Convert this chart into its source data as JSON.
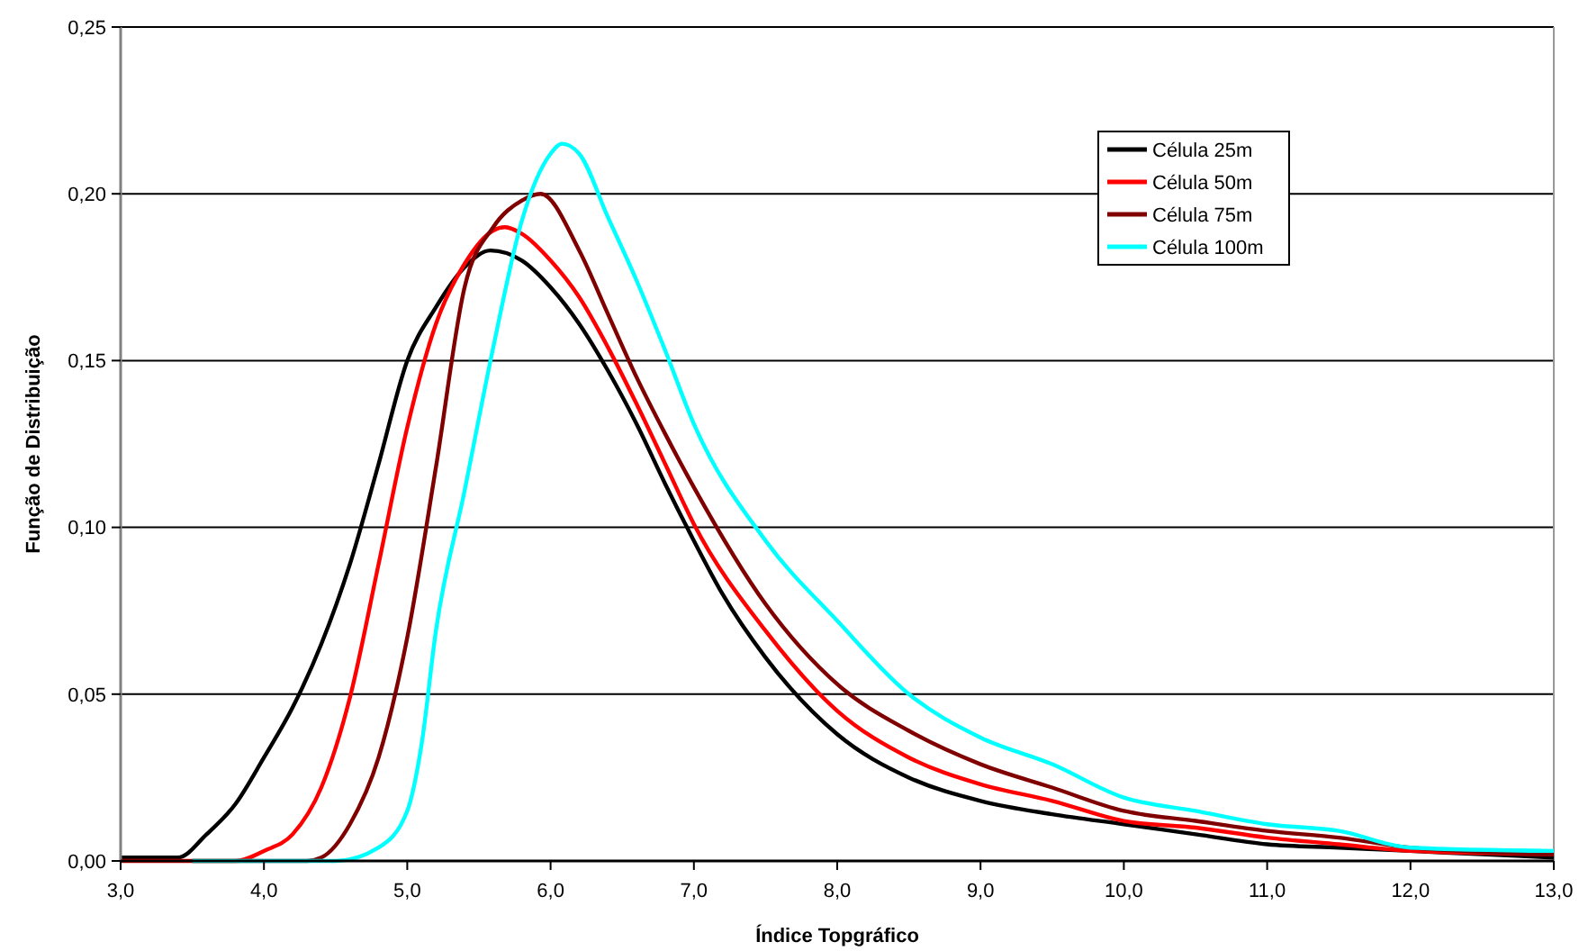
{
  "chart_data": {
    "type": "line",
    "xlabel": "Índice Topgráfico",
    "ylabel": "Função de Distribuição",
    "xlim": [
      3,
      13
    ],
    "ylim": [
      0,
      0.25
    ],
    "xticks": [
      {
        "value": 3,
        "label": "3,0"
      },
      {
        "value": 4,
        "label": "4,0"
      },
      {
        "value": 5,
        "label": "5,0"
      },
      {
        "value": 6,
        "label": "6,0"
      },
      {
        "value": 7,
        "label": "7,0"
      },
      {
        "value": 8,
        "label": "8,0"
      },
      {
        "value": 9,
        "label": "9,0"
      },
      {
        "value": 10,
        "label": "10,0"
      },
      {
        "value": 11,
        "label": "11,0"
      },
      {
        "value": 12,
        "label": "12,0"
      },
      {
        "value": 13,
        "label": "13,0"
      }
    ],
    "yticks": [
      {
        "value": 0,
        "label": "0,00"
      },
      {
        "value": 0.05,
        "label": "0,05"
      },
      {
        "value": 0.1,
        "label": "0,10"
      },
      {
        "value": 0.15,
        "label": "0,15"
      },
      {
        "value": 0.2,
        "label": "0,20"
      },
      {
        "value": 0.25,
        "label": "0,25"
      }
    ],
    "grid": "y",
    "legend": "top right",
    "marker": "none",
    "line_style": "solid",
    "series": [
      {
        "name": "Célula 25m",
        "color": "#000000",
        "x": [
          3,
          3.4,
          3.6,
          3.8,
          4,
          4.2,
          4.4,
          4.6,
          4.8,
          5,
          5.2,
          5.4,
          5.58,
          5.8,
          6,
          6.2,
          6.4,
          6.6,
          6.8,
          7,
          7.2,
          7.5,
          8,
          8.5,
          9,
          9.5,
          10,
          10.5,
          11,
          11.5,
          12,
          12.5,
          13
        ],
        "values": [
          0.001,
          0.001,
          0.008,
          0.017,
          0.031,
          0.046,
          0.065,
          0.089,
          0.119,
          0.15,
          0.166,
          0.178,
          0.183,
          0.18,
          0.172,
          0.161,
          0.147,
          0.131,
          0.113,
          0.096,
          0.08,
          0.061,
          0.038,
          0.025,
          0.018,
          0.014,
          0.011,
          0.008,
          0.005,
          0.004,
          0.003,
          0.002,
          0.001
        ]
      },
      {
        "name": "Célula 50m",
        "color": "#ff0000",
        "x": [
          3,
          3.8,
          4,
          4.2,
          4.4,
          4.6,
          4.8,
          5,
          5.2,
          5.4,
          5.6,
          5.68,
          5.8,
          6,
          6.2,
          6.4,
          6.6,
          6.8,
          7,
          7.5,
          8,
          8.5,
          9,
          9.5,
          10,
          10.5,
          11,
          11.5,
          12,
          13
        ],
        "values": [
          0,
          0,
          0.003,
          0.008,
          0.022,
          0.049,
          0.089,
          0.13,
          0.161,
          0.179,
          0.189,
          0.19,
          0.188,
          0.18,
          0.169,
          0.154,
          0.137,
          0.119,
          0.101,
          0.069,
          0.045,
          0.031,
          0.023,
          0.018,
          0.012,
          0.01,
          0.007,
          0.005,
          0.003,
          0.002
        ]
      },
      {
        "name": "Célula 75m",
        "color": "#800000",
        "x": [
          3.5,
          4.3,
          4.4,
          4.6,
          4.8,
          5,
          5.2,
          5.4,
          5.6,
          5.8,
          5.93,
          6.2,
          6.4,
          6.6,
          6.8,
          7,
          7.5,
          8,
          8.5,
          9,
          9.5,
          10,
          10.5,
          11,
          11.5,
          12,
          13
        ],
        "values": [
          0,
          0,
          0.001,
          0.011,
          0.031,
          0.067,
          0.118,
          0.172,
          0.19,
          0.198,
          0.2,
          0.183,
          0.164,
          0.145,
          0.128,
          0.112,
          0.077,
          0.053,
          0.039,
          0.029,
          0.022,
          0.015,
          0.012,
          0.009,
          0.007,
          0.004,
          0.002
        ]
      },
      {
        "name": "Célula 100m",
        "color": "#00ffff",
        "x": [
          3.5,
          4.5,
          4.8,
          5,
          5.1,
          5.2,
          5.4,
          5.6,
          5.8,
          6,
          6.08,
          6.2,
          6.4,
          6.6,
          6.8,
          7,
          7.5,
          8,
          8.5,
          9,
          9.5,
          10,
          10.5,
          11,
          11.5,
          12,
          13
        ],
        "values": [
          0,
          0,
          0.004,
          0.015,
          0.035,
          0.069,
          0.111,
          0.154,
          0.192,
          0.212,
          0.215,
          0.212,
          0.193,
          0.174,
          0.153,
          0.131,
          0.096,
          0.072,
          0.05,
          0.037,
          0.029,
          0.019,
          0.015,
          0.011,
          0.009,
          0.004,
          0.003
        ]
      }
    ]
  }
}
